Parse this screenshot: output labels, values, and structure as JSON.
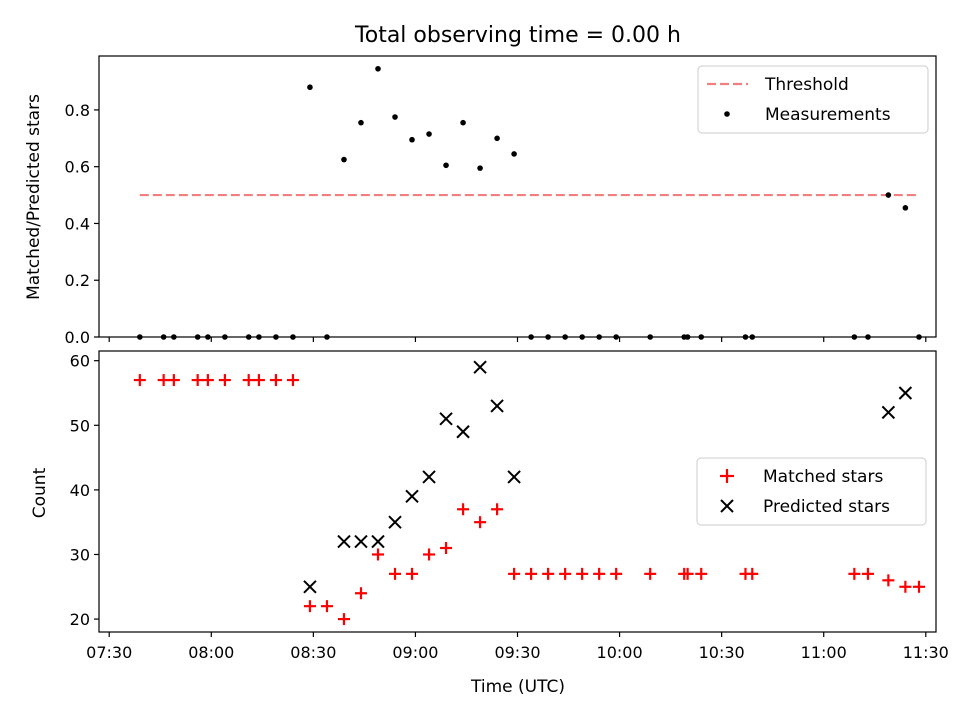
{
  "chart_data": [
    {
      "type": "scatter",
      "title": "Total observing time = 0.00 h",
      "ylabel": "Matched/Predicted stars",
      "xlabel": "",
      "x_unit": "time (UTC)",
      "xlim": [
        "07:27",
        "11:33"
      ],
      "ylim": [
        0,
        0.99
      ],
      "x_ticks": [
        "07:30",
        "08:00",
        "08:30",
        "09:00",
        "09:30",
        "10:00",
        "10:30",
        "11:00",
        "11:30"
      ],
      "y_ticks": [
        "0.0",
        "0.2",
        "0.4",
        "0.6",
        "0.8"
      ],
      "legend_position": "top-right",
      "legend": [
        "Threshold",
        "Measurements"
      ],
      "threshold": {
        "name": "Threshold",
        "value": 0.5,
        "x_start": "07:39",
        "x_end": "11:28",
        "color": "#f08080",
        "style": "dashed"
      },
      "series": [
        {
          "name": "Measurements",
          "color": "#000000",
          "marker": "dot",
          "points": [
            [
              "07:39",
              0
            ],
            [
              "07:46",
              0
            ],
            [
              "07:49",
              0
            ],
            [
              "07:56",
              0
            ],
            [
              "07:59",
              0
            ],
            [
              "08:04",
              0
            ],
            [
              "08:11",
              0
            ],
            [
              "08:14",
              0
            ],
            [
              "08:19",
              0
            ],
            [
              "08:24",
              0
            ],
            [
              "08:29",
              0.88
            ],
            [
              "08:34",
              0
            ],
            [
              "08:39",
              0.625
            ],
            [
              "08:44",
              0.755
            ],
            [
              "08:49",
              0.945
            ],
            [
              "08:54",
              0.775
            ],
            [
              "08:59",
              0.695
            ],
            [
              "09:04",
              0.715
            ],
            [
              "09:09",
              0.605
            ],
            [
              "09:14",
              0.755
            ],
            [
              "09:19",
              0.595
            ],
            [
              "09:24",
              0.7
            ],
            [
              "09:29",
              0.645
            ],
            [
              "09:34",
              0
            ],
            [
              "09:39",
              0
            ],
            [
              "09:44",
              0
            ],
            [
              "09:49",
              0
            ],
            [
              "09:54",
              0
            ],
            [
              "09:59",
              0
            ],
            [
              "10:09",
              0
            ],
            [
              "10:19",
              0
            ],
            [
              "10:20",
              0
            ],
            [
              "10:24",
              0
            ],
            [
              "10:37",
              0
            ],
            [
              "10:39",
              0
            ],
            [
              "11:09",
              0
            ],
            [
              "11:13",
              0
            ],
            [
              "11:19",
              0.5
            ],
            [
              "11:24",
              0.455
            ],
            [
              "11:28",
              0
            ]
          ]
        }
      ]
    },
    {
      "type": "scatter",
      "title": "",
      "ylabel": "Count",
      "xlabel": "Time (UTC)",
      "x_unit": "time (UTC)",
      "xlim": [
        "07:27",
        "11:33"
      ],
      "ylim": [
        18,
        61.5
      ],
      "x_ticks": [
        "07:30",
        "08:00",
        "08:30",
        "09:00",
        "09:30",
        "10:00",
        "10:30",
        "11:00",
        "11:30"
      ],
      "y_ticks": [
        "20",
        "30",
        "40",
        "50",
        "60"
      ],
      "legend_position": "center-right",
      "legend": [
        "Matched stars",
        "Predicted stars"
      ],
      "series": [
        {
          "name": "Matched stars",
          "color": "#ff0000",
          "marker": "plus",
          "points": [
            [
              "07:39",
              57
            ],
            [
              "07:46",
              57
            ],
            [
              "07:49",
              57
            ],
            [
              "07:56",
              57
            ],
            [
              "07:59",
              57
            ],
            [
              "08:04",
              57
            ],
            [
              "08:11",
              57
            ],
            [
              "08:14",
              57
            ],
            [
              "08:19",
              57
            ],
            [
              "08:24",
              57
            ],
            [
              "08:29",
              22
            ],
            [
              "08:34",
              22
            ],
            [
              "08:39",
              20
            ],
            [
              "08:44",
              24
            ],
            [
              "08:49",
              30
            ],
            [
              "08:54",
              27
            ],
            [
              "08:59",
              27
            ],
            [
              "09:04",
              30
            ],
            [
              "09:09",
              31
            ],
            [
              "09:14",
              37
            ],
            [
              "09:19",
              35
            ],
            [
              "09:24",
              37
            ],
            [
              "09:29",
              27
            ],
            [
              "09:34",
              27
            ],
            [
              "09:39",
              27
            ],
            [
              "09:44",
              27
            ],
            [
              "09:49",
              27
            ],
            [
              "09:54",
              27
            ],
            [
              "09:59",
              27
            ],
            [
              "10:09",
              27
            ],
            [
              "10:19",
              27
            ],
            [
              "10:20",
              27
            ],
            [
              "10:24",
              27
            ],
            [
              "10:37",
              27
            ],
            [
              "10:39",
              27
            ],
            [
              "11:09",
              27
            ],
            [
              "11:13",
              27
            ],
            [
              "11:19",
              26
            ],
            [
              "11:24",
              25
            ],
            [
              "11:28",
              25
            ]
          ]
        },
        {
          "name": "Predicted stars",
          "color": "#000000",
          "marker": "x",
          "points": [
            [
              "08:29",
              25
            ],
            [
              "08:39",
              32
            ],
            [
              "08:44",
              32
            ],
            [
              "08:49",
              32
            ],
            [
              "08:54",
              35
            ],
            [
              "08:59",
              39
            ],
            [
              "09:04",
              42
            ],
            [
              "09:09",
              51
            ],
            [
              "09:14",
              49
            ],
            [
              "09:19",
              59
            ],
            [
              "09:24",
              53
            ],
            [
              "09:29",
              42
            ],
            [
              "11:19",
              52
            ],
            [
              "11:24",
              55
            ]
          ]
        }
      ]
    }
  ]
}
